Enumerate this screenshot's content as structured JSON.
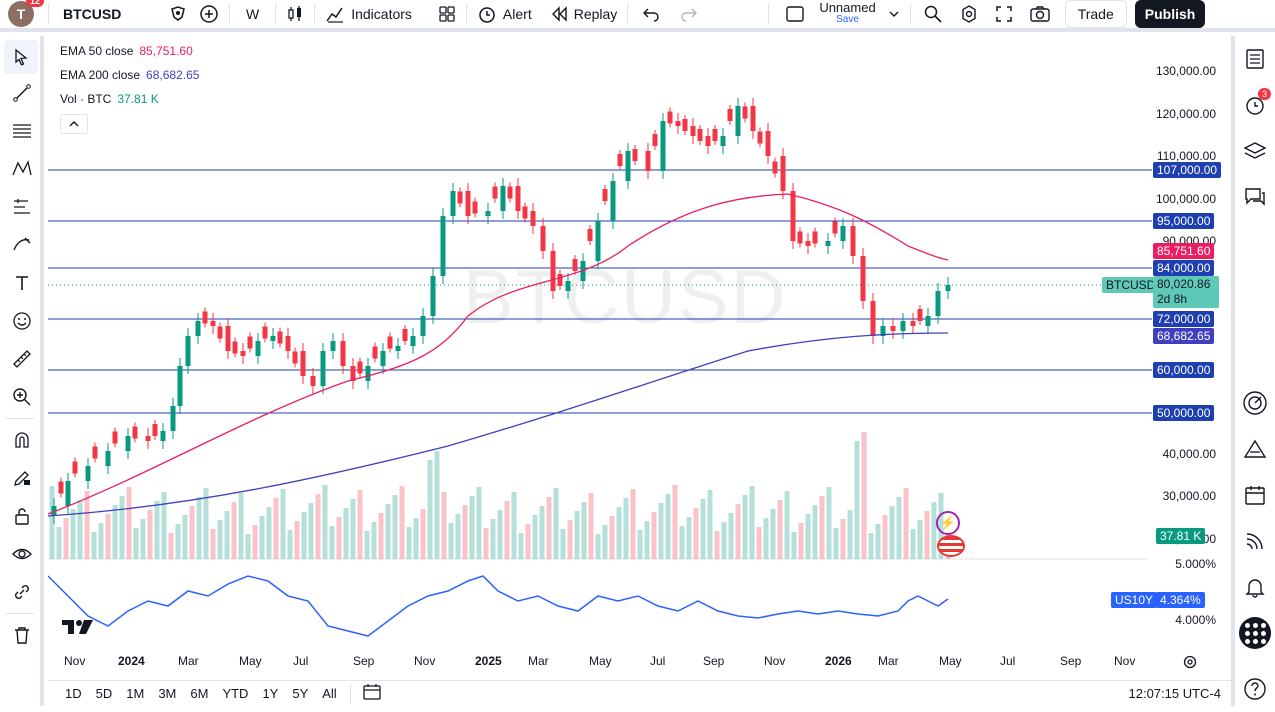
{
  "topbar": {
    "avatar_letter": "T",
    "avatar_badge": "12",
    "symbol": "BTCUSD",
    "interval": "W",
    "indicators_label": "Indicators",
    "alert_label": "Alert",
    "replay_label": "Replay",
    "layout_name": "Unnamed",
    "layout_save": "Save",
    "trade_label": "Trade",
    "publish_label": "Publish"
  },
  "legend": {
    "ema50_label": "EMA 50 close",
    "ema50_value": "85,751.60",
    "ema200_label": "EMA 200 close",
    "ema200_value": "68,682.65",
    "vol_label": "Vol · BTC",
    "vol_value": "37.81 K"
  },
  "watermark": "BTCUSD",
  "price_axis": {
    "labels": [
      "130,000.00",
      "120,000.00",
      "110,000.00",
      "100,000.00",
      "90,000.00",
      "40,000.00",
      "30,000.00",
      "20,000.00"
    ],
    "lower_labels": [
      "5.000%",
      "4.000%"
    ]
  },
  "tags": {
    "l107": "107,000.00",
    "l95": "95,000.00",
    "ema50": "85,751.60",
    "l84": "84,000.00",
    "symbol": "BTCUSD",
    "last": "80,020.86",
    "countdown": "2d 8h",
    "l72": "72,000.00",
    "ema200": "68,682.65",
    "l60": "60,000.00",
    "l50": "50,000.00",
    "volume": "37.81 K",
    "us10y_symbol": "US10Y",
    "us10y_value": "4.364%"
  },
  "time_axis": [
    "Nov",
    "2024",
    "Mar",
    "May",
    "Jul",
    "Sep",
    "Nov",
    "2025",
    "Mar",
    "May",
    "Jul",
    "Sep",
    "Nov",
    "2026",
    "Mar",
    "May",
    "Jul",
    "Sep",
    "Nov"
  ],
  "bottombar": {
    "ranges": [
      "1D",
      "5D",
      "1M",
      "3M",
      "6M",
      "YTD",
      "1Y",
      "5Y",
      "All"
    ],
    "time": "12:07:15 UTC-4"
  },
  "colors": {
    "up": "#089981",
    "down": "#f23645",
    "ema50": "#e91e63",
    "ema200": "#3f3fbf",
    "hline": "#1e3fb0",
    "us10y": "#2962ff"
  }
}
